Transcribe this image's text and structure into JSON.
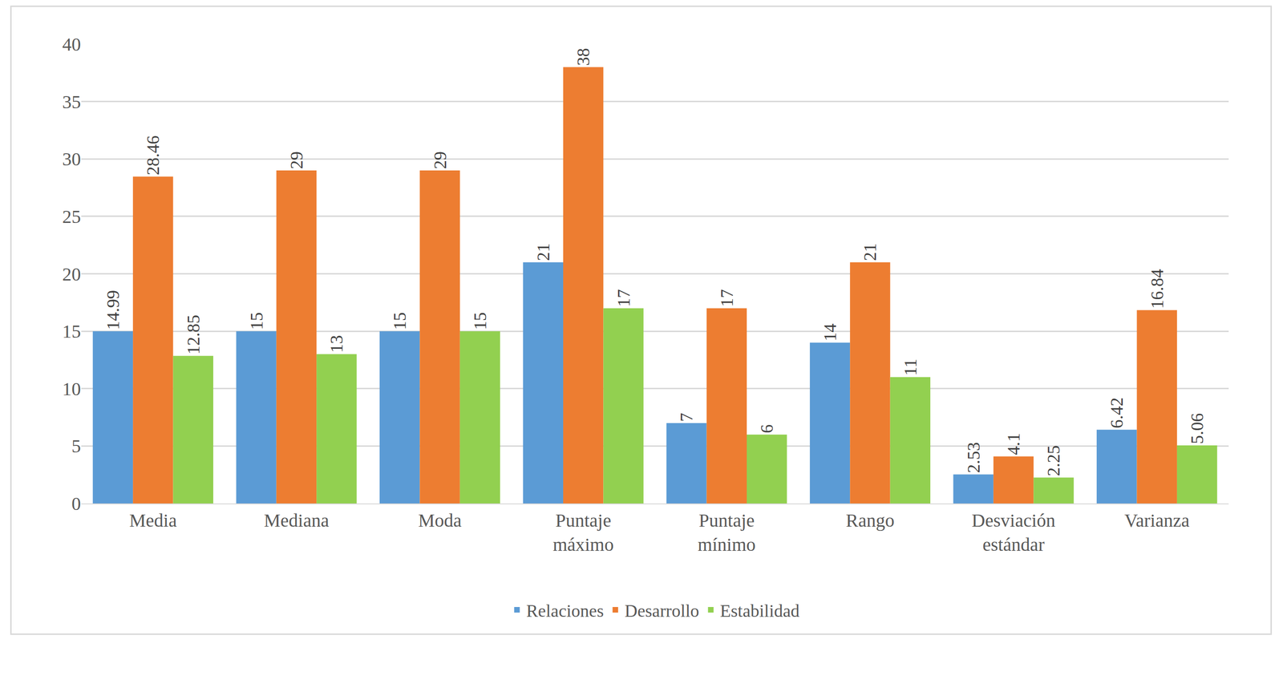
{
  "chart_data": {
    "type": "bar",
    "categories": [
      "Media",
      "Mediana",
      "Moda",
      "Puntaje máximo",
      "Puntaje mínimo",
      "Rango",
      "Desviación estándar",
      "Varianza"
    ],
    "series": [
      {
        "name": "Relaciones",
        "color": "#5b9bd5",
        "values": [
          14.99,
          15,
          15,
          21,
          7,
          14,
          2.53,
          6.42
        ]
      },
      {
        "name": "Desarrollo",
        "color": "#ed7d31",
        "values": [
          28.46,
          29,
          29,
          38,
          17,
          21,
          4.1,
          16.84
        ]
      },
      {
        "name": "Estabilidad",
        "color": "#92d050",
        "values": [
          12.85,
          13,
          15,
          17,
          6,
          11,
          2.25,
          5.06
        ]
      }
    ],
    "ylim": [
      0,
      40
    ],
    "yticks": [
      0,
      5,
      10,
      15,
      20,
      25,
      30,
      35,
      40
    ],
    "grid": true,
    "legend": "bottom",
    "data_labels": true
  }
}
